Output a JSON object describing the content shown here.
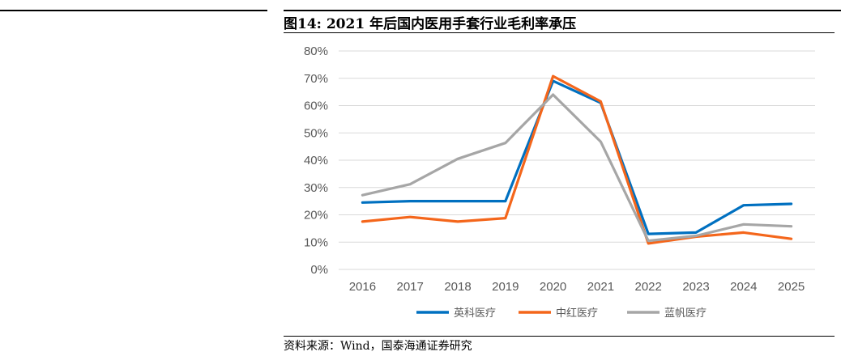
{
  "title": "图14: 2021 年后国内医用手套行业毛利率承压",
  "source": "资料来源：Wind，国泰海通证券研究",
  "chart_data": {
    "type": "line",
    "categories": [
      "2016",
      "2017",
      "2018",
      "2019",
      "2020",
      "2021",
      "2022",
      "2023",
      "2024",
      "2025"
    ],
    "series": [
      {
        "name": "英科医疗",
        "color": "#0070C0",
        "values": [
          24.5,
          25.0,
          25.0,
          25.0,
          69.0,
          61.0,
          13.0,
          13.5,
          23.5,
          24.0
        ]
      },
      {
        "name": "中红医疗",
        "color": "#F4661B",
        "values": [
          17.5,
          19.2,
          17.5,
          18.8,
          70.8,
          61.5,
          9.5,
          12.0,
          13.5,
          11.2
        ]
      },
      {
        "name": "蓝帆医疗",
        "color": "#A6A6A6",
        "values": [
          27.2,
          31.2,
          40.5,
          46.3,
          64.0,
          46.8,
          10.5,
          12.3,
          16.5,
          15.8
        ]
      }
    ],
    "yticks": [
      "0%",
      "10%",
      "20%",
      "30%",
      "40%",
      "50%",
      "60%",
      "70%",
      "80%"
    ],
    "ylim": [
      0,
      80
    ],
    "grid": true,
    "legend": "bottom"
  }
}
